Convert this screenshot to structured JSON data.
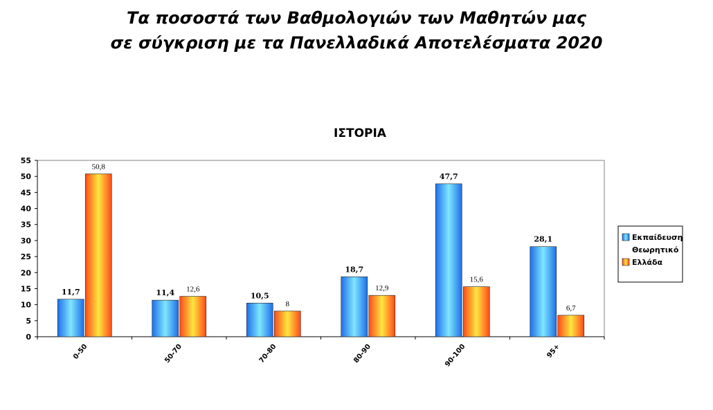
{
  "header": {
    "title_line1": "Τα ποσοστά των Βαθμολογιών των Μαθητών μας",
    "title_line2": "σε σύγκριση με τα Πανελλαδικά Αποτελέσματα 2020"
  },
  "chart_data": {
    "type": "bar",
    "title": "ΙΣΤΟΡΙΑ",
    "categories": [
      "0-50",
      "50-70",
      "70-80",
      "80-90",
      "90-100",
      "95+"
    ],
    "series": [
      {
        "name": "Εκπαίδευση Θεωρητικό",
        "legend_lines": [
          "Εκπαίδευση",
          "Θεωρητικό"
        ],
        "values": [
          11.7,
          11.4,
          10.5,
          18.7,
          47.7,
          28.1
        ],
        "labels": [
          "11,7",
          "11,4",
          "10,5",
          "18,7",
          "47,7",
          "28,1"
        ],
        "color": "#1e6fe8",
        "highlight": "#7fe6ff"
      },
      {
        "name": "Ελλάδα",
        "legend_lines": [
          "Ελλάδα"
        ],
        "values": [
          50.8,
          12.6,
          8,
          12.9,
          15.6,
          6.7
        ],
        "labels": [
          "50,8",
          "12,6",
          "8",
          "12,9",
          "15,6",
          "6,7"
        ],
        "color": "#ff4a1a",
        "highlight": "#ffe640"
      }
    ],
    "ylim": [
      0,
      55
    ],
    "yticks": [
      0,
      5,
      10,
      15,
      20,
      25,
      30,
      35,
      40,
      45,
      50,
      55
    ],
    "xlabel": "",
    "ylabel": "",
    "grid": false,
    "legend_position": "right"
  }
}
